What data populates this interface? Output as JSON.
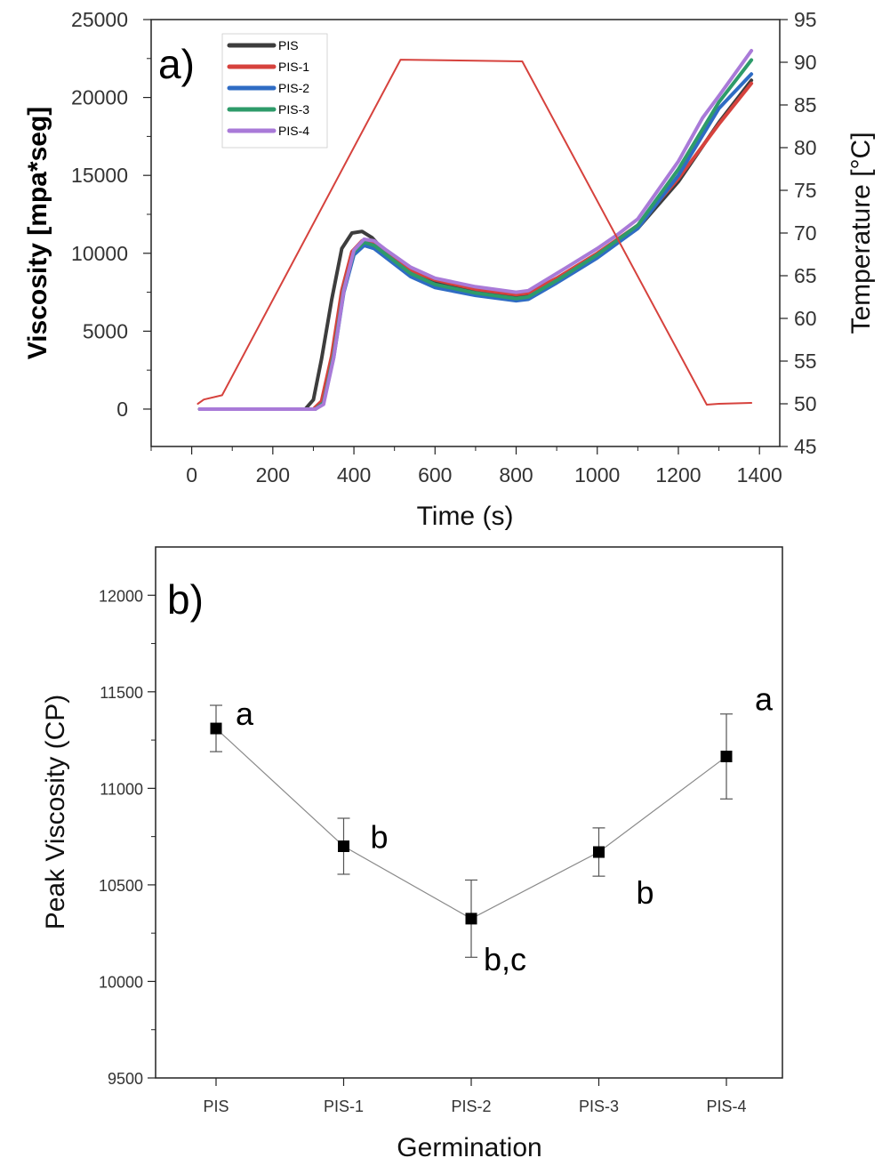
{
  "chart_data": [
    {
      "panel_label": "a)",
      "type": "line",
      "xlabel": "Time (s)",
      "ylabel": "Viscosity [mpa*seg]",
      "y2label": "Temperature [°C]",
      "xlim": [
        -100,
        1450
      ],
      "ylim": [
        -2400,
        25000
      ],
      "y2lim": [
        45,
        95
      ],
      "xticks": [
        0,
        200,
        400,
        600,
        800,
        1000,
        1200,
        1400
      ],
      "yticks": [
        0,
        5000,
        10000,
        15000,
        20000,
        25000
      ],
      "y2ticks": [
        45,
        50,
        55,
        60,
        65,
        70,
        75,
        80,
        85,
        90,
        95
      ],
      "legend": {
        "placement": "top-left",
        "entries": [
          "PIS",
          "PIS-1",
          "PIS-2",
          "PIS-3",
          "PIS-4"
        ]
      },
      "series": [
        {
          "name": "PIS",
          "color": "#3d3d3d",
          "x": [
            20,
            280,
            300,
            320,
            345,
            370,
            395,
            420,
            445,
            480,
            540,
            600,
            700,
            800,
            830,
            900,
            1000,
            1100,
            1200,
            1300,
            1380
          ],
          "y": [
            0,
            0,
            600,
            3200,
            7000,
            10300,
            11300,
            11400,
            11000,
            10000,
            8800,
            8100,
            7600,
            7250,
            7350,
            8300,
            9800,
            11600,
            14600,
            18400,
            21100
          ]
        },
        {
          "name": "PIS-1",
          "color": "#d6423d",
          "x": [
            20,
            300,
            320,
            345,
            370,
            395,
            420,
            445,
            480,
            540,
            600,
            700,
            800,
            830,
            900,
            1000,
            1100,
            1200,
            1300,
            1380
          ],
          "y": [
            0,
            0,
            500,
            3400,
            7600,
            10100,
            10800,
            10700,
            10000,
            8900,
            8300,
            7700,
            7350,
            7450,
            8400,
            10000,
            11800,
            14800,
            18300,
            20900
          ]
        },
        {
          "name": "PIS-2",
          "color": "#2f6cc4",
          "x": [
            20,
            305,
            325,
            350,
            375,
            400,
            425,
            450,
            480,
            540,
            600,
            700,
            800,
            830,
            900,
            1000,
            1100,
            1200,
            1300,
            1380
          ],
          "y": [
            0,
            0,
            400,
            3300,
            7500,
            9900,
            10500,
            10300,
            9700,
            8500,
            7800,
            7300,
            6950,
            7050,
            8100,
            9700,
            11600,
            15000,
            19300,
            21500
          ]
        },
        {
          "name": "PIS-3",
          "color": "#2e9b6a",
          "x": [
            20,
            305,
            325,
            350,
            375,
            400,
            425,
            450,
            480,
            540,
            600,
            700,
            800,
            830,
            900,
            1000,
            1100,
            1200,
            1300,
            1380
          ],
          "y": [
            0,
            0,
            400,
            3500,
            7700,
            10100,
            10700,
            10500,
            9900,
            8700,
            8000,
            7450,
            7100,
            7200,
            8250,
            9900,
            11800,
            15400,
            19700,
            22400
          ]
        },
        {
          "name": "PIS-4",
          "color": "#a97ad8",
          "x": [
            20,
            305,
            325,
            350,
            375,
            400,
            425,
            450,
            480,
            540,
            600,
            700,
            800,
            830,
            900,
            1000,
            1050,
            1100,
            1200,
            1260,
            1300,
            1380
          ],
          "y": [
            0,
            0,
            300,
            3300,
            7600,
            10200,
            10900,
            10800,
            10200,
            9100,
            8400,
            7850,
            7500,
            7600,
            8700,
            10300,
            11200,
            12200,
            15900,
            18700,
            20100,
            23000
          ]
        },
        {
          "name": "",
          "axis": "right",
          "color": "#d6423d",
          "x": [
            15,
            30,
            75,
            515,
            815,
            1270,
            1300,
            1380
          ],
          "y": [
            50,
            50.5,
            51,
            90.3,
            90.1,
            49.9,
            50,
            50.1
          ]
        }
      ]
    },
    {
      "panel_label": "b)",
      "type": "scatter",
      "xlabel": "Germination",
      "ylabel": "Peak Viscosity (CP)",
      "ylim": [
        9500,
        12250
      ],
      "yticks": [
        9500,
        10000,
        10500,
        11000,
        11500,
        12000
      ],
      "categories": [
        "PIS",
        "PIS-1",
        "PIS-2",
        "PIS-3",
        "PIS-4"
      ],
      "values": [
        11310,
        10700,
        10325,
        10670,
        11165
      ],
      "errors": [
        120,
        145,
        200,
        125,
        220
      ],
      "annotations": [
        "a",
        "b",
        "b,c",
        "b",
        "a"
      ]
    }
  ]
}
